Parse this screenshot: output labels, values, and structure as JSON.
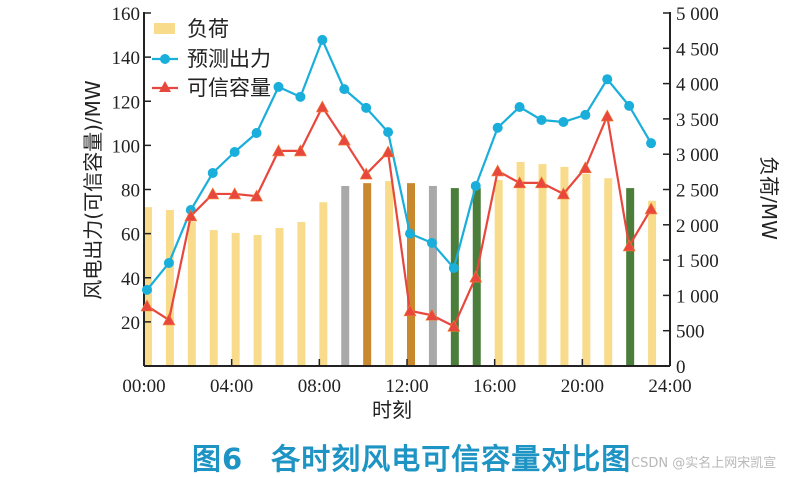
{
  "chart_data": {
    "type": "bar+line",
    "title": "图6  各时刻风电可信容量对比图",
    "xlabel": "时刻",
    "ylabel_left": "风电出力(可信容量)/MW",
    "ylabel_right": "负荷/MW",
    "x_ticks": [
      "00:00",
      "04:00",
      "08:00",
      "12:00",
      "16:00",
      "20:00",
      "24:00"
    ],
    "y_left_ticks": [
      20,
      40,
      60,
      80,
      100,
      120,
      140,
      160
    ],
    "y_left_range": [
      0,
      160
    ],
    "y_right_ticks": [
      "0",
      "500",
      "1 000",
      "1 500",
      "2 000",
      "2 500",
      "3 000",
      "3 500",
      "4 000",
      "4 500",
      "5 000"
    ],
    "y_right_range": [
      0,
      5000
    ],
    "hours": [
      0,
      1,
      2,
      3,
      4,
      5,
      6,
      7,
      8,
      9,
      10,
      11,
      12,
      13,
      14,
      15,
      16,
      17,
      18,
      19,
      20,
      21,
      22,
      23
    ],
    "legend": [
      {
        "label": "负荷",
        "kind": "bar",
        "color": "#F8DC8C"
      },
      {
        "label": "预测出力",
        "kind": "line-circle",
        "color": "#1AAEDB"
      },
      {
        "label": "可信容量",
        "kind": "line-triangle",
        "color": "#E8473E"
      }
    ],
    "series": [
      {
        "name": "负荷",
        "axis": "right",
        "type": "bar",
        "values": [
          2250,
          2210,
          2040,
          1925,
          1885,
          1855,
          1955,
          2040,
          2320,
          2550,
          2590,
          2620,
          2590,
          2550,
          2520,
          2520,
          2635,
          2890,
          2860,
          2820,
          2720,
          2660,
          2520,
          2340
        ],
        "colors": [
          "light",
          "light",
          "light",
          "light",
          "light",
          "light",
          "light",
          "light",
          "light",
          "grey",
          "gold",
          "light",
          "gold",
          "grey",
          "green",
          "green",
          "light",
          "light",
          "light",
          "light",
          "light",
          "light",
          "green",
          "light"
        ]
      },
      {
        "name": "预测出力",
        "axis": "left",
        "type": "line",
        "values": [
          34.5,
          46.7,
          70.7,
          87.5,
          97,
          105.6,
          126.5,
          122,
          147.8,
          125.5,
          117,
          106,
          60,
          55.8,
          44.4,
          81.6,
          108,
          117.4,
          111.5,
          110.6,
          113.8,
          130,
          117.9,
          101
        ]
      },
      {
        "name": "可信容量",
        "axis": "left",
        "type": "line",
        "values": [
          27.2,
          20.9,
          68,
          78,
          78,
          77,
          97.5,
          97.5,
          117.4,
          102.4,
          87,
          97,
          25,
          23,
          18,
          40.3,
          88.4,
          83,
          83,
          78,
          89.8,
          113.3,
          54.4,
          71.2
        ]
      }
    ],
    "bar_palette": {
      "light": "#F8DC8C",
      "grey": "#A9A9A9",
      "gold": "#C8892E",
      "green": "#4A7E3A"
    },
    "grid": false,
    "legend_position": "upper-left"
  },
  "caption": {
    "figure_number": "图6",
    "text": "各时刻风电可信容量对比图"
  },
  "watermark": "CSDN @实名上网宋凯宣"
}
